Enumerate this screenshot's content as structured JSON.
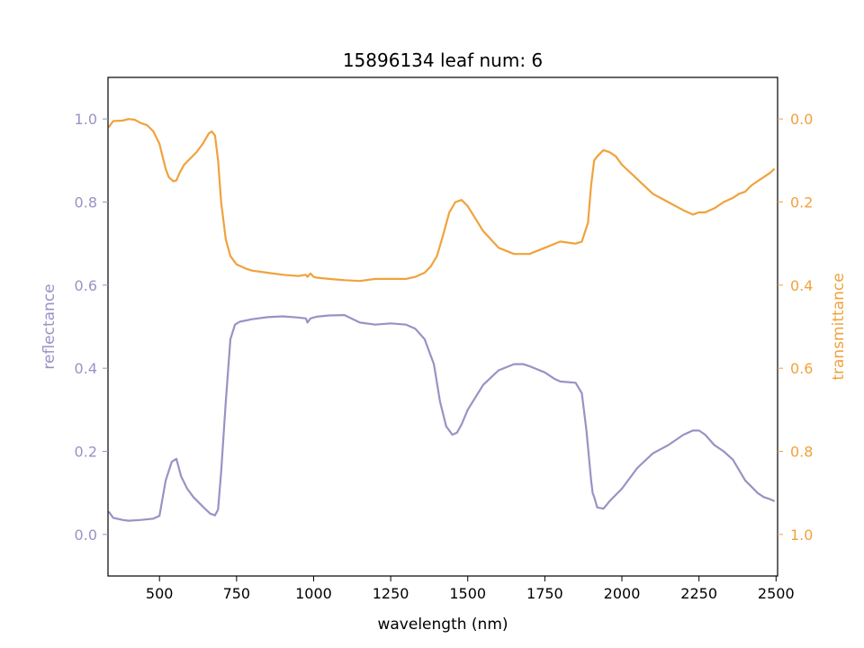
{
  "chart_data": {
    "type": "line",
    "title": "15896134 leaf num: 6",
    "xlabel": "wavelength (nm)",
    "ylabel": "reflectance",
    "y2label": "transmittance",
    "xlim": [
      333,
      2505
    ],
    "ylim": [
      -0.1,
      1.1
    ],
    "y2lim": [
      1.1,
      -0.1
    ],
    "xticks": [
      500,
      750,
      1000,
      1250,
      1500,
      1750,
      2000,
      2250,
      2500
    ],
    "yticks": [
      0.0,
      0.2,
      0.4,
      0.6,
      0.8,
      1.0
    ],
    "y2ticks": [
      0.0,
      0.2,
      0.4,
      0.6,
      0.8,
      1.0
    ],
    "grid": false,
    "series": [
      {
        "name": "reflectance",
        "axis": "left",
        "color": "#9893c4",
        "x": [
          335,
          350,
          380,
          400,
          440,
          480,
          500,
          520,
          540,
          555,
          570,
          590,
          610,
          630,
          650,
          665,
          680,
          690,
          700,
          715,
          730,
          745,
          760,
          800,
          850,
          900,
          950,
          975,
          980,
          990,
          1000,
          1010,
          1050,
          1100,
          1150,
          1200,
          1250,
          1300,
          1330,
          1360,
          1390,
          1410,
          1430,
          1450,
          1465,
          1480,
          1500,
          1550,
          1600,
          1650,
          1680,
          1700,
          1750,
          1780,
          1800,
          1850,
          1870,
          1885,
          1900,
          1905,
          1910,
          1920,
          1940,
          1960,
          2000,
          2050,
          2100,
          2150,
          2200,
          2230,
          2250,
          2270,
          2300,
          2330,
          2360,
          2380,
          2400,
          2420,
          2440,
          2460,
          2480,
          2495
        ],
        "y": [
          0.055,
          0.04,
          0.035,
          0.033,
          0.035,
          0.038,
          0.045,
          0.13,
          0.175,
          0.182,
          0.14,
          0.11,
          0.09,
          0.075,
          0.06,
          0.05,
          0.046,
          0.06,
          0.15,
          0.32,
          0.47,
          0.505,
          0.512,
          0.518,
          0.523,
          0.525,
          0.522,
          0.52,
          0.51,
          0.52,
          0.522,
          0.524,
          0.527,
          0.528,
          0.51,
          0.505,
          0.508,
          0.505,
          0.495,
          0.47,
          0.41,
          0.32,
          0.26,
          0.24,
          0.245,
          0.265,
          0.3,
          0.36,
          0.395,
          0.41,
          0.41,
          0.405,
          0.39,
          0.375,
          0.368,
          0.365,
          0.34,
          0.25,
          0.13,
          0.1,
          0.09,
          0.065,
          0.062,
          0.08,
          0.11,
          0.16,
          0.195,
          0.215,
          0.24,
          0.25,
          0.25,
          0.24,
          0.215,
          0.2,
          0.18,
          0.155,
          0.13,
          0.115,
          0.1,
          0.09,
          0.085,
          0.08
        ]
      },
      {
        "name": "transmittance",
        "axis": "right",
        "color": "#f0a23c",
        "x": [
          335,
          350,
          380,
          400,
          420,
          440,
          460,
          480,
          500,
          510,
          520,
          530,
          545,
          555,
          565,
          580,
          600,
          620,
          640,
          660,
          670,
          680,
          690,
          700,
          715,
          730,
          750,
          780,
          800,
          850,
          900,
          950,
          975,
          980,
          990,
          1000,
          1010,
          1050,
          1100,
          1150,
          1200,
          1250,
          1300,
          1330,
          1360,
          1380,
          1400,
          1420,
          1440,
          1460,
          1480,
          1500,
          1550,
          1600,
          1650,
          1700,
          1750,
          1800,
          1850,
          1870,
          1890,
          1900,
          1910,
          1920,
          1940,
          1960,
          1980,
          2000,
          2050,
          2100,
          2150,
          2200,
          2230,
          2250,
          2270,
          2300,
          2330,
          2360,
          2380,
          2400,
          2420,
          2440,
          2460,
          2480,
          2495
        ],
        "y": [
          0.02,
          0.005,
          0.004,
          0.0,
          0.002,
          0.01,
          0.015,
          0.03,
          0.06,
          0.09,
          0.12,
          0.14,
          0.15,
          0.148,
          0.13,
          0.11,
          0.095,
          0.08,
          0.06,
          0.035,
          0.03,
          0.04,
          0.1,
          0.2,
          0.29,
          0.33,
          0.35,
          0.36,
          0.365,
          0.37,
          0.375,
          0.378,
          0.375,
          0.38,
          0.372,
          0.38,
          0.382,
          0.385,
          0.388,
          0.39,
          0.385,
          0.385,
          0.385,
          0.38,
          0.37,
          0.355,
          0.33,
          0.28,
          0.225,
          0.2,
          0.195,
          0.21,
          0.27,
          0.31,
          0.325,
          0.325,
          0.31,
          0.295,
          0.3,
          0.295,
          0.25,
          0.16,
          0.1,
          0.09,
          0.075,
          0.08,
          0.09,
          0.11,
          0.145,
          0.18,
          0.2,
          0.22,
          0.23,
          0.225,
          0.225,
          0.215,
          0.2,
          0.19,
          0.18,
          0.175,
          0.16,
          0.15,
          0.14,
          0.13,
          0.12
        ]
      }
    ]
  }
}
